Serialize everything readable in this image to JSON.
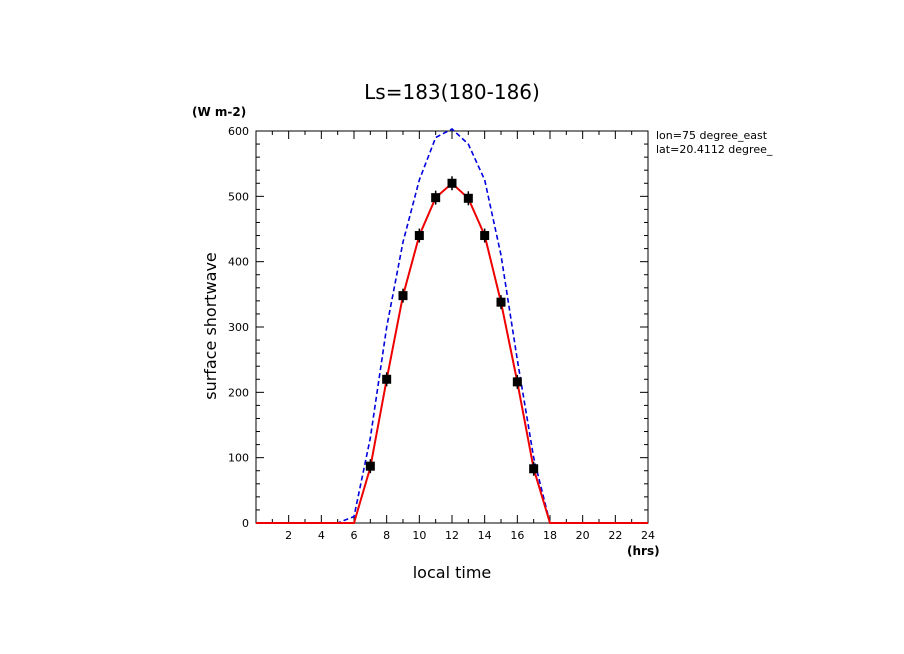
{
  "chart_data": {
    "type": "line",
    "title": "Ls=183(180-186)",
    "xlabel": "local time",
    "ylabel": "surface shortwave",
    "xunit": "(hrs)",
    "yunit": "(W m-2)",
    "annotations": [
      "lon=75 degree_east",
      "lat=20.4112 degree_"
    ],
    "xlim": [
      0,
      24
    ],
    "ylim": [
      0,
      600
    ],
    "xticks": [
      2,
      4,
      6,
      8,
      10,
      12,
      14,
      16,
      18,
      20,
      22,
      24
    ],
    "yticks": [
      0,
      100,
      200,
      300,
      400,
      500,
      600
    ],
    "grid": false,
    "series": [
      {
        "style": "dashed",
        "color": "#0000dd",
        "x": [
          0,
          1,
          2,
          3,
          4,
          5,
          6,
          7,
          8,
          9,
          10,
          11,
          12,
          13,
          14,
          15,
          16,
          17,
          18,
          19,
          20,
          21,
          22,
          23,
          24
        ],
        "y": [
          0,
          0,
          0,
          0,
          0,
          0,
          10,
          130,
          300,
          430,
          525,
          590,
          603,
          580,
          525,
          410,
          250,
          100,
          0,
          0,
          0,
          0,
          0,
          0,
          0
        ]
      },
      {
        "style": "solid",
        "color": "#ee0000",
        "x": [
          0,
          1,
          2,
          3,
          4,
          5,
          6,
          7,
          8,
          9,
          10,
          11,
          12,
          13,
          14,
          15,
          16,
          17,
          18,
          19,
          20,
          21,
          22,
          23,
          24
        ],
        "y": [
          0,
          0,
          0,
          0,
          0,
          0,
          0,
          85,
          220,
          348,
          440,
          498,
          520,
          497,
          440,
          338,
          216,
          83,
          0,
          0,
          0,
          0,
          0,
          0,
          0
        ]
      },
      {
        "style": "markers",
        "color": "#000000",
        "x": [
          7,
          8,
          9,
          10,
          11,
          12,
          13,
          14,
          15,
          16,
          17
        ],
        "y": [
          87,
          220,
          348,
          440,
          498,
          520,
          497,
          440,
          338,
          216,
          83
        ]
      }
    ]
  }
}
